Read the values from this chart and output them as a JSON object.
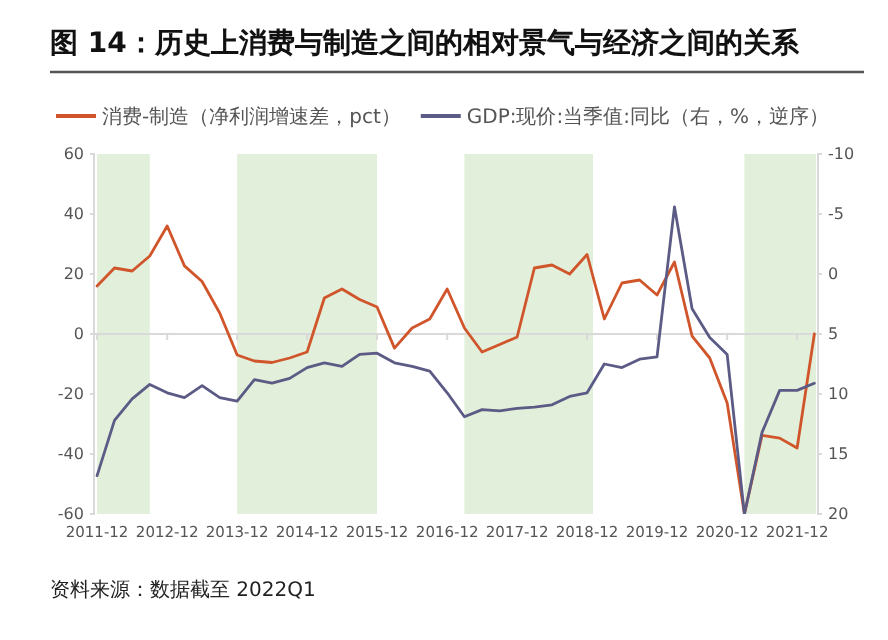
{
  "chart_data": {
    "type": "line",
    "title": "图 14：历史上消费与制造之间的相对景气与经济之间的关系",
    "x": [
      "2011-12",
      "2012-03",
      "2012-06",
      "2012-09",
      "2012-12",
      "2013-03",
      "2013-06",
      "2013-09",
      "2013-12",
      "2014-03",
      "2014-06",
      "2014-09",
      "2014-12",
      "2015-03",
      "2015-06",
      "2015-09",
      "2015-12",
      "2016-03",
      "2016-06",
      "2016-09",
      "2016-12",
      "2017-03",
      "2017-06",
      "2017-09",
      "2017-12",
      "2018-03",
      "2018-06",
      "2018-09",
      "2018-12",
      "2019-03",
      "2019-06",
      "2019-09",
      "2019-12",
      "2020-03",
      "2020-06",
      "2020-09",
      "2020-12",
      "2021-03",
      "2021-06",
      "2021-09",
      "2021-12",
      "2022-03"
    ],
    "series": [
      {
        "name": "消费-制造（净利润增速差，pct）",
        "color": "#d0552b",
        "values": [
          16,
          22,
          21,
          26,
          36,
          22.7,
          17.5,
          7,
          -7,
          -9,
          -9.5,
          -8,
          -6,
          12,
          15,
          11.5,
          9,
          -4.7,
          2,
          5,
          15,
          2,
          -6,
          -3.5,
          -1,
          22,
          23,
          20,
          26.5,
          5,
          17,
          18,
          13,
          24,
          -0.7,
          -8,
          -23,
          -60,
          -33.8,
          -34.7,
          -38,
          0
        ]
      },
      {
        "name": "GDP:现价:当季值:同比（右，%，逆序）",
        "color": "#5b5b85",
        "axis": "y2",
        "values": [
          16.8,
          12.2,
          10.4,
          9.2,
          9.9,
          10.3,
          9.3,
          10.3,
          10.6,
          8.8,
          9.1,
          8.7,
          7.8,
          7.4,
          7.7,
          6.7,
          6.6,
          7.4,
          7.7,
          8.1,
          9.9,
          11.9,
          11.3,
          11.4,
          11.2,
          11.1,
          10.9,
          10.2,
          9.9,
          7.5,
          7.8,
          7.1,
          6.9,
          -5.6,
          2.9,
          5.3,
          6.7,
          20,
          13.2,
          9.7,
          9.7,
          9.1
        ]
      }
    ],
    "xlim": [
      "2011-11-15",
      "2022-03-20"
    ],
    "xticks": [
      {
        "value": "2011-12",
        "label": "2011-12"
      },
      {
        "value": "2012-12",
        "label": "2012-12"
      },
      {
        "value": "2013-12",
        "label": "2013-12"
      },
      {
        "value": "2014-12",
        "label": "2014-12"
      },
      {
        "value": "2015-12",
        "label": "2015-12"
      },
      {
        "value": "2016-12",
        "label": "2016-12"
      },
      {
        "value": "2017-12",
        "label": "2017-12"
      },
      {
        "value": "2018-12",
        "label": "2018-12"
      },
      {
        "value": "2019-12",
        "label": "2019-12"
      },
      {
        "value": "2020-12",
        "label": "2020-12"
      },
      {
        "value": "2021-12",
        "label": "2021-12"
      }
    ],
    "ylim": [
      -60,
      60
    ],
    "yticks": [
      -60,
      -40,
      -20,
      0,
      20,
      40,
      60
    ],
    "y2lim": [
      20,
      -10
    ],
    "y2ticks": [
      -10,
      -5,
      0,
      5,
      10,
      15,
      20
    ],
    "bands": [
      {
        "axis": "x",
        "from": "2011-12",
        "to": "2012-09",
        "color": "#e2efda"
      },
      {
        "axis": "x",
        "from": "2013-12",
        "to": "2015-12",
        "color": "#e2efda"
      },
      {
        "axis": "x",
        "from": "2017-03",
        "to": "2019-01",
        "color": "#e2efda"
      },
      {
        "axis": "x",
        "from": "2021-03",
        "to": "2022-03-10",
        "color": "#e2efda"
      }
    ],
    "ref_lines": [
      {
        "axis": "y",
        "value": 0,
        "color": "#d9d9d9"
      }
    ],
    "legend": "top",
    "grid": false,
    "marker": "none",
    "line_style": "solid",
    "annotations": [
      "资料来源：数据截至 2022Q1"
    ]
  }
}
